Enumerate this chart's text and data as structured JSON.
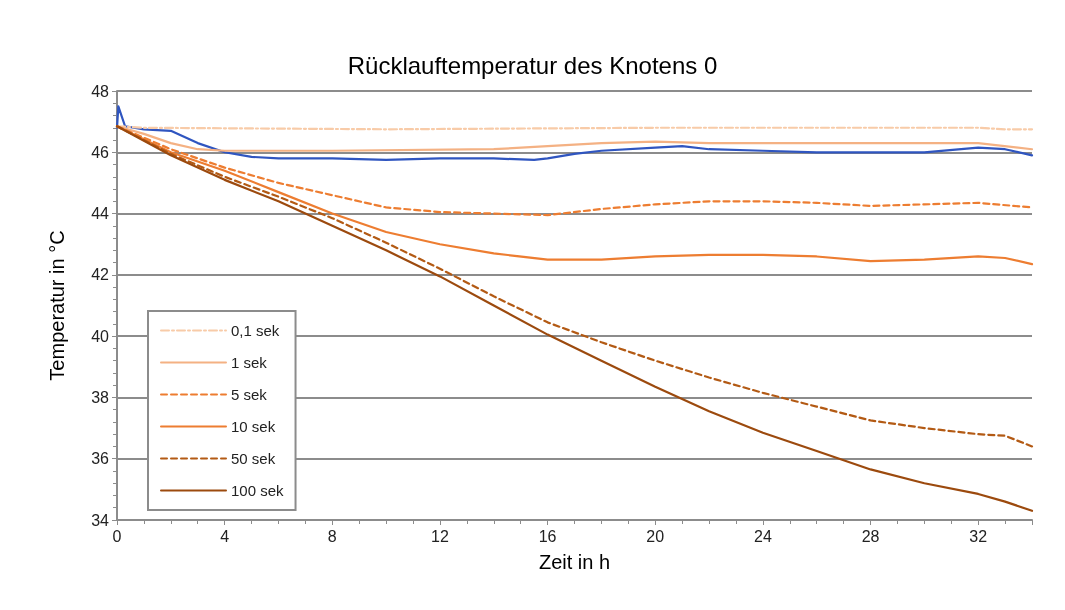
{
  "chart_data": {
    "type": "line",
    "title": "Rücklauftemperatur des Knotens 0",
    "xlabel": "Zeit in h",
    "ylabel": "Temperatur in °C",
    "xlim": [
      0,
      34
    ],
    "xticks": [
      0,
      4,
      8,
      12,
      16,
      20,
      24,
      28,
      32
    ],
    "ylim": [
      34,
      48
    ],
    "yticks": [
      34,
      36,
      38,
      40,
      42,
      44,
      46,
      48
    ],
    "grid": "y",
    "legend": "bottom left",
    "marker": "none",
    "series": [
      {
        "color": "#2f55c0",
        "line_style": "solid",
        "x": [
          0,
          0.05,
          0.3,
          1,
          2,
          3,
          4,
          5,
          6,
          8,
          10,
          12,
          14,
          15.5,
          16,
          17,
          18,
          20,
          21,
          22,
          24,
          26,
          28,
          30,
          32,
          33,
          34
        ],
        "values": [
          46.8,
          47.5,
          46.85,
          46.75,
          46.7,
          46.3,
          46.0,
          45.85,
          45.8,
          45.8,
          45.75,
          45.8,
          45.8,
          45.75,
          45.8,
          45.95,
          46.05,
          46.15,
          46.2,
          46.1,
          46.05,
          46.0,
          46.0,
          46.0,
          46.15,
          46.1,
          45.9
        ]
      },
      {
        "name": "0,1 sek",
        "color": "#f8cba8",
        "line_style": "dashdot",
        "x": [
          0,
          1,
          10,
          20,
          30,
          32,
          33,
          34
        ],
        "values": [
          46.85,
          46.8,
          46.75,
          46.8,
          46.8,
          46.8,
          46.75,
          46.75
        ]
      },
      {
        "name": "1 sek",
        "color": "#f4b183",
        "line_style": "solid",
        "x": [
          0,
          1,
          2,
          3,
          4,
          8,
          14,
          16,
          18,
          20,
          22,
          26,
          30,
          32,
          34
        ],
        "values": [
          46.85,
          46.6,
          46.3,
          46.1,
          46.05,
          46.05,
          46.1,
          46.2,
          46.3,
          46.35,
          46.3,
          46.3,
          46.3,
          46.3,
          46.1
        ]
      },
      {
        "name": "5 sek",
        "color": "#ed7d31",
        "line_style": "dashed",
        "x": [
          0,
          2,
          4,
          6,
          8,
          10,
          12,
          14,
          16,
          18,
          20,
          22,
          24,
          26,
          28,
          30,
          32,
          34
        ],
        "values": [
          46.85,
          46.1,
          45.5,
          45.0,
          44.6,
          44.2,
          44.05,
          44.0,
          43.95,
          44.15,
          44.3,
          44.4,
          44.4,
          44.35,
          44.25,
          44.3,
          44.35,
          44.2
        ]
      },
      {
        "name": "10 sek",
        "color": "#ed7d31",
        "line_style": "solid",
        "x": [
          0,
          2,
          4,
          6,
          8,
          10,
          12,
          14,
          16,
          18,
          20,
          22,
          24,
          26,
          28,
          30,
          32,
          33,
          34
        ],
        "values": [
          46.85,
          46.0,
          45.4,
          44.7,
          44.0,
          43.4,
          43.0,
          42.7,
          42.5,
          42.5,
          42.6,
          42.65,
          42.65,
          42.6,
          42.45,
          42.5,
          42.6,
          42.55,
          42.35
        ]
      },
      {
        "name": "50 sek",
        "color": "#b35a14",
        "line_style": "dashed",
        "x": [
          0,
          2,
          4,
          6,
          8,
          10,
          12,
          14,
          16,
          18,
          20,
          22,
          24,
          26,
          28,
          30,
          32,
          33,
          34
        ],
        "values": [
          46.85,
          45.95,
          45.2,
          44.55,
          43.85,
          43.05,
          42.2,
          41.3,
          40.45,
          39.8,
          39.2,
          38.65,
          38.15,
          37.7,
          37.25,
          37.0,
          36.8,
          36.75,
          36.4
        ]
      },
      {
        "name": "100 sek",
        "color": "#9c4a0e",
        "line_style": "solid",
        "x": [
          0,
          2,
          4,
          6,
          8,
          10,
          12,
          14,
          16,
          18,
          20,
          22,
          24,
          26,
          28,
          30,
          32,
          33,
          34
        ],
        "values": [
          46.85,
          45.9,
          45.1,
          44.4,
          43.6,
          42.8,
          41.95,
          41.0,
          40.05,
          39.2,
          38.35,
          37.55,
          36.85,
          36.25,
          35.65,
          35.2,
          34.85,
          34.6,
          34.3
        ]
      }
    ]
  }
}
